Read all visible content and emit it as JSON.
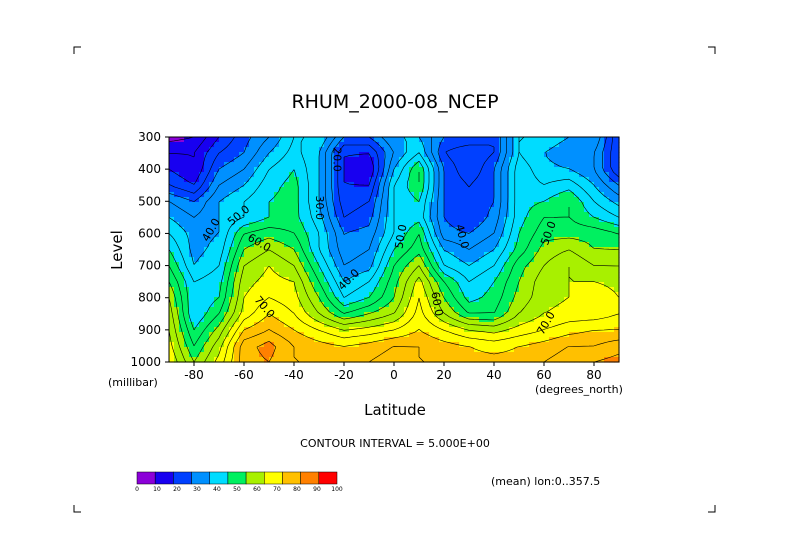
{
  "chart_data": {
    "type": "heatmap",
    "title": "RHUM_2000-08_NCEP",
    "xlabel": "Latitude",
    "ylabel": "Level",
    "x_units": "(degrees_north)",
    "y_units": "(millibar)",
    "xlim": [
      -90,
      90
    ],
    "ylim": [
      1000,
      300
    ],
    "x_ticks": [
      -80,
      -60,
      -40,
      -20,
      0,
      20,
      40,
      60,
      80
    ],
    "y_ticks": [
      300,
      400,
      500,
      600,
      700,
      800,
      900,
      1000
    ],
    "contour_interval_text": "CONTOUR INTERVAL = 5.000E+00",
    "mean_text": "(mean) lon:0..357.5",
    "colorbar": {
      "ticks": [
        "0",
        "10",
        "20",
        "30",
        "40",
        "50",
        "60",
        "70",
        "80",
        "90",
        "100"
      ],
      "colors": [
        "#8b00d8",
        "#1800f0",
        "#0040ff",
        "#0090ff",
        "#00dcff",
        "#00f060",
        "#a8f000",
        "#ffff00",
        "#ffc000",
        "#ff8000",
        "#ff0000"
      ]
    },
    "contour_labels": [
      {
        "text": "20.0",
        "lat": -23,
        "lev": 370,
        "rotate": 90
      },
      {
        "text": "30.0",
        "lat": -30,
        "lev": 520,
        "rotate": 90
      },
      {
        "text": "40.0",
        "lat": -73,
        "lev": 590,
        "rotate": -60
      },
      {
        "text": "50.0",
        "lat": -62,
        "lev": 545,
        "rotate": -40
      },
      {
        "text": "60.0",
        "lat": -54,
        "lev": 630,
        "rotate": 30
      },
      {
        "text": "70.0",
        "lat": -52,
        "lev": 830,
        "rotate": 50
      },
      {
        "text": "40.0",
        "lat": -18,
        "lev": 745,
        "rotate": -45
      },
      {
        "text": "50.0",
        "lat": 3,
        "lev": 610,
        "rotate": -80
      },
      {
        "text": "60.0",
        "lat": 17,
        "lev": 820,
        "rotate": 80
      },
      {
        "text": "40.0",
        "lat": 27,
        "lev": 610,
        "rotate": 75
      },
      {
        "text": "50.0",
        "lat": 62,
        "lev": 600,
        "rotate": -70
      },
      {
        "text": "70.0",
        "lat": 61,
        "lev": 880,
        "rotate": -60
      }
    ],
    "grid_lat": [
      -90,
      -80,
      -70,
      -60,
      -50,
      -40,
      -30,
      -20,
      -10,
      0,
      10,
      20,
      30,
      40,
      50,
      60,
      70,
      80,
      90
    ],
    "grid_lev": [
      300,
      350,
      400,
      450,
      500,
      550,
      600,
      650,
      700,
      750,
      800,
      850,
      900,
      950,
      1000
    ],
    "values": [
      [
        8,
        10,
        20,
        28,
        35,
        45,
        45,
        30,
        30,
        40,
        40,
        30,
        30,
        25,
        45,
        45,
        40,
        40,
        20
      ],
      [
        15,
        15,
        25,
        30,
        40,
        47,
        40,
        20,
        20,
        35,
        45,
        25,
        20,
        25,
        45,
        40,
        35,
        35,
        20
      ],
      [
        20,
        15,
        30,
        35,
        45,
        50,
        40,
        20,
        15,
        40,
        55,
        30,
        20,
        30,
        48,
        42,
        40,
        35,
        20
      ],
      [
        25,
        20,
        35,
        40,
        48,
        52,
        40,
        20,
        20,
        45,
        55,
        30,
        25,
        30,
        48,
        45,
        48,
        40,
        30
      ],
      [
        35,
        30,
        40,
        45,
        50,
        52,
        40,
        22,
        25,
        45,
        50,
        30,
        25,
        30,
        48,
        50,
        55,
        45,
        38
      ],
      [
        40,
        35,
        40,
        45,
        50,
        52,
        42,
        25,
        28,
        45,
        48,
        30,
        25,
        32,
        48,
        55,
        55,
        50,
        45
      ],
      [
        45,
        38,
        40,
        55,
        58,
        55,
        45,
        30,
        32,
        45,
        55,
        32,
        30,
        35,
        50,
        58,
        58,
        58,
        55
      ],
      [
        50,
        38,
        42,
        60,
        65,
        60,
        45,
        32,
        35,
        50,
        58,
        40,
        35,
        40,
        52,
        62,
        65,
        60,
        60
      ],
      [
        55,
        40,
        45,
        65,
        70,
        65,
        50,
        35,
        38,
        55,
        65,
        45,
        40,
        45,
        58,
        65,
        70,
        65,
        65
      ],
      [
        60,
        45,
        48,
        68,
        72,
        70,
        55,
        40,
        45,
        58,
        72,
        55,
        45,
        50,
        60,
        68,
        70,
        70,
        68
      ],
      [
        65,
        45,
        50,
        70,
        75,
        72,
        60,
        45,
        50,
        60,
        75,
        60,
        48,
        52,
        62,
        68,
        70,
        75,
        70
      ],
      [
        68,
        45,
        55,
        72,
        80,
        75,
        65,
        55,
        60,
        65,
        77,
        65,
        55,
        55,
        65,
        70,
        72,
        72,
        75
      ],
      [
        70,
        50,
        62,
        80,
        85,
        80,
        75,
        70,
        72,
        75,
        80,
        75,
        70,
        68,
        72,
        75,
        78,
        80,
        80
      ],
      [
        72,
        55,
        68,
        88,
        92,
        85,
        82,
        80,
        82,
        85,
        85,
        82,
        80,
        78,
        80,
        82,
        85,
        85,
        88
      ],
      [
        75,
        60,
        72,
        88,
        90,
        85,
        85,
        85,
        85,
        88,
        85,
        85,
        82,
        82,
        82,
        85,
        88,
        90,
        92
      ]
    ]
  }
}
